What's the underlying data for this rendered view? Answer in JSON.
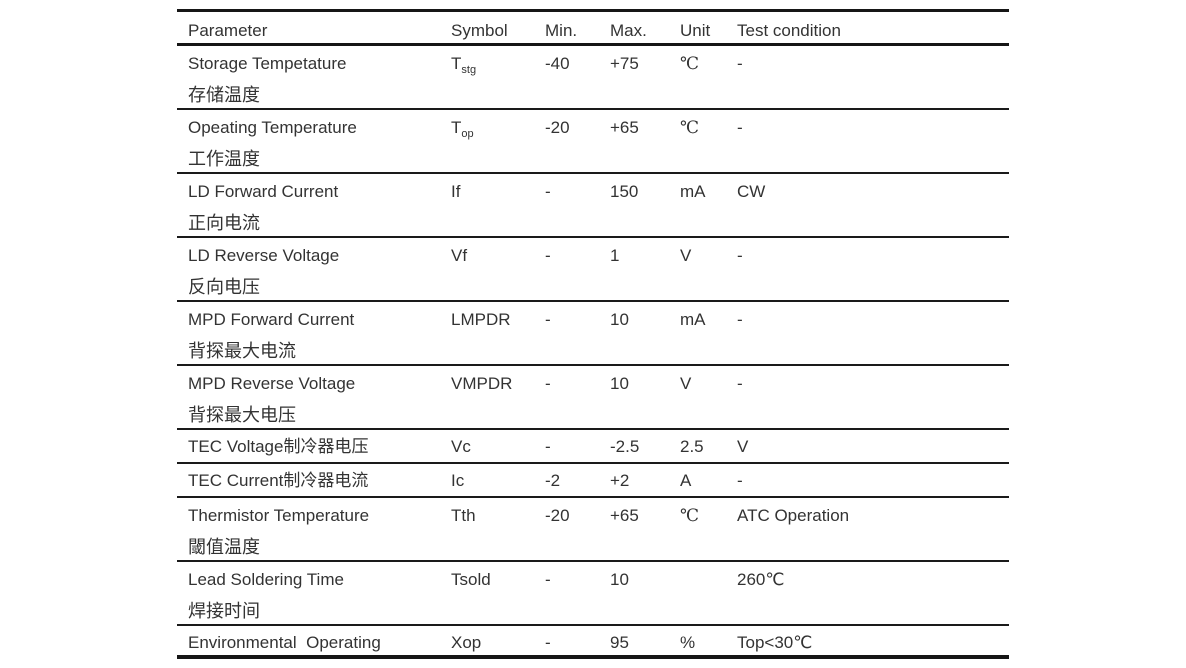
{
  "table": {
    "columns": {
      "parameter": "Parameter",
      "symbol": "Symbol",
      "min": "Min.",
      "max": "Max.",
      "unit": "Unit",
      "test": "Test condition"
    },
    "rows": [
      {
        "param": "Storage Tempetature",
        "param_cn": "存储温度",
        "sym": "T",
        "sym_sub": "stg",
        "min": "-40",
        "max": "+75",
        "unit": "℃",
        "test": "-"
      },
      {
        "param": "Opeating Temperature",
        "param_cn": "工作温度",
        "sym": "T",
        "sym_sub": "op",
        "min": "-20",
        "max": "+65",
        "unit": "℃",
        "test": "-"
      },
      {
        "param": "LD Forward Current",
        "param_cn": "正向电流",
        "sym": "If",
        "sym_sub": "",
        "min": "-",
        "max": "150",
        "unit": "mA",
        "test": "CW"
      },
      {
        "param": "LD Reverse Voltage",
        "param_cn": "反向电压",
        "sym": "Vf",
        "sym_sub": "",
        "min": "-",
        "max": "1",
        "unit": "V",
        "test": "-"
      },
      {
        "param": "MPD Forward Current",
        "param_cn": "背探最大电流",
        "sym": "LMPDR",
        "sym_sub": "",
        "min": "-",
        "max": "10",
        "unit": "mA",
        "test": "-"
      },
      {
        "param": "MPD Reverse Voltage",
        "param_cn": "背探最大电压",
        "sym": "VMPDR",
        "sym_sub": "",
        "min": "-",
        "max": "10",
        "unit": "V",
        "test": "-"
      },
      {
        "param": "TEC Voltage制冷器电压",
        "param_cn": "",
        "sym": "Vc",
        "sym_sub": "",
        "min": "-",
        "max": "-2.5",
        "unit": "2.5",
        "test": "V"
      },
      {
        "param": "TEC Current制冷器电流",
        "param_cn": "",
        "sym": "Ic",
        "sym_sub": "",
        "min": "-2",
        "max": "+2",
        "unit": "A",
        "test": "-"
      },
      {
        "param": "Thermistor Temperature",
        "param_cn": "閾值温度",
        "sym": "Tth",
        "sym_sub": "",
        "min": "-20",
        "max": "+65",
        "unit": "℃",
        "test": "ATC Operation"
      },
      {
        "param": "Lead Soldering Time",
        "param_cn": "焊接时间",
        "sym": "Tsold",
        "sym_sub": "",
        "min": "-",
        "max": "10",
        "unit": "",
        "test": "260℃"
      },
      {
        "param": "Environmental  Operating",
        "param_cn": "",
        "sym": "Xop",
        "sym_sub": "",
        "min": "-",
        "max": "95",
        "unit": "%",
        "test": "Top<30℃"
      }
    ],
    "colors": {
      "text": "#333333",
      "border": "#161616",
      "background": "#ffffff"
    }
  }
}
